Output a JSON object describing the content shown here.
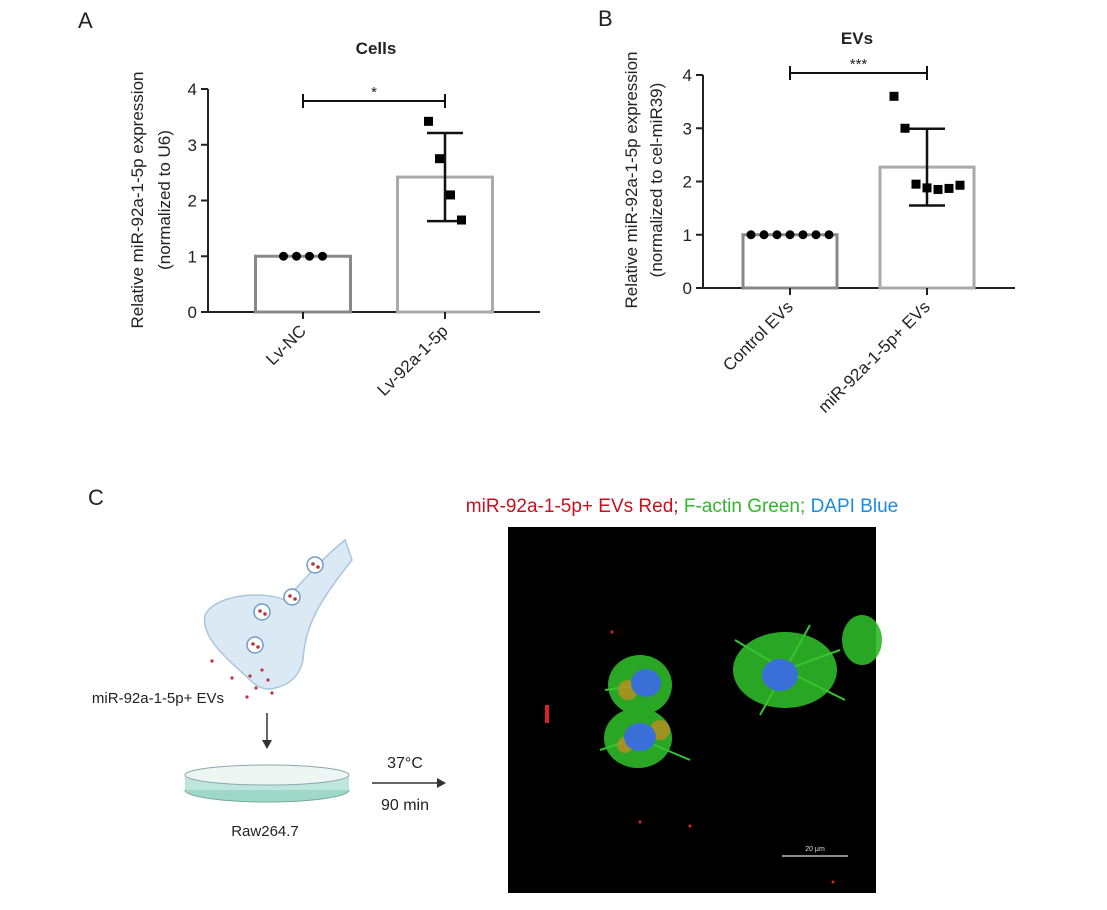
{
  "chart_data": [
    {
      "type": "bar",
      "panel": "A",
      "title": "Cells",
      "ylabel": [
        "Relative miR-92a-1-5p expression",
        "(normalized to U6)"
      ],
      "categories": [
        "Lv-NC",
        "Lv-92a-1-5p"
      ],
      "values": [
        1.0,
        2.42
      ],
      "errors": [
        null,
        0.79
      ],
      "points": [
        [
          1,
          1,
          1,
          1
        ],
        [
          3.42,
          2.75,
          2.1,
          1.65
        ]
      ],
      "markers": [
        "circle",
        "square"
      ],
      "significance": "*",
      "bar_colors": [
        "#888888",
        "#aaaaaa"
      ],
      "ylim": [
        0,
        4
      ],
      "yticks": [
        0,
        1,
        2,
        3,
        4
      ]
    },
    {
      "type": "bar",
      "panel": "B",
      "title": "EVs",
      "ylabel": [
        "Relative miR-92a-1-5p expression",
        "(normalized to cel-miR39)"
      ],
      "categories": [
        "Control EVs",
        "miR-92a-1-5p+ EVs"
      ],
      "values": [
        1.0,
        2.27
      ],
      "errors": [
        null,
        0.72
      ],
      "points": [
        [
          1,
          1,
          1,
          1,
          1,
          1,
          1
        ],
        [
          3.6,
          3.0,
          1.95,
          1.88,
          1.85,
          1.87,
          1.93
        ]
      ],
      "markers": [
        "circle",
        "square"
      ],
      "significance": "***",
      "bar_colors": [
        "#888888",
        "#aaaaaa"
      ],
      "ylim": [
        0,
        4
      ],
      "yticks": [
        0,
        1,
        2,
        3,
        4
      ]
    }
  ],
  "panel_c": {
    "label": "C",
    "caption": [
      "miR-92a-1-5p+ EVs Red;",
      "F-actin Green;",
      "DAPI Blue"
    ],
    "ev_label": "miR-92a-1-5p+ EVs",
    "cell_label": "Raw264.7",
    "temperature": "37°C",
    "time": "90 min",
    "scale_bar": "20 μm"
  }
}
